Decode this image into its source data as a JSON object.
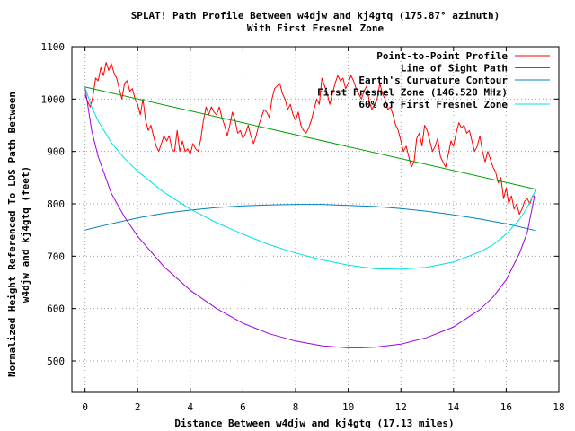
{
  "chart_data": {
    "type": "line",
    "title": "SPLAT! Path Profile Between w4djw and kj4gtq (175.87° azimuth)",
    "subtitle": "With First Fresnel Zone",
    "xlabel": "Distance Between w4djw and kj4gtq (17.13 miles)",
    "ylabel_line1": "Normalized Height Referenced To LOS Path Between",
    "ylabel_line2": "w4djw and kj4gtq (feet)",
    "xlim": [
      -0.5,
      18
    ],
    "ylim": [
      440,
      1100
    ],
    "x_ticks": [
      0,
      2,
      4,
      6,
      8,
      10,
      12,
      14,
      16,
      18
    ],
    "y_ticks": [
      500,
      600,
      700,
      800,
      900,
      1000,
      1100
    ],
    "grid": true,
    "legend_position": "top-right",
    "series": [
      {
        "name": "Point-to-Point Profile",
        "color": "#ff0000",
        "x": [
          0.0,
          0.1,
          0.2,
          0.3,
          0.4,
          0.5,
          0.6,
          0.7,
          0.8,
          0.9,
          1.0,
          1.1,
          1.2,
          1.3,
          1.4,
          1.5,
          1.6,
          1.7,
          1.8,
          1.9,
          2.0,
          2.1,
          2.2,
          2.3,
          2.4,
          2.5,
          2.6,
          2.7,
          2.8,
          2.9,
          3.0,
          3.1,
          3.2,
          3.3,
          3.4,
          3.5,
          3.6,
          3.7,
          3.8,
          3.9,
          4.0,
          4.1,
          4.2,
          4.3,
          4.4,
          4.5,
          4.6,
          4.7,
          4.8,
          4.9,
          5.0,
          5.1,
          5.2,
          5.3,
          5.4,
          5.5,
          5.6,
          5.7,
          5.8,
          5.9,
          6.0,
          6.1,
          6.2,
          6.3,
          6.4,
          6.5,
          6.6,
          6.7,
          6.8,
          6.9,
          7.0,
          7.1,
          7.2,
          7.3,
          7.4,
          7.5,
          7.6,
          7.7,
          7.8,
          7.9,
          8.0,
          8.1,
          8.2,
          8.3,
          8.4,
          8.5,
          8.6,
          8.7,
          8.8,
          8.9,
          9.0,
          9.1,
          9.2,
          9.3,
          9.4,
          9.5,
          9.6,
          9.7,
          9.8,
          9.9,
          10.0,
          10.1,
          10.2,
          10.3,
          10.4,
          10.5,
          10.6,
          10.7,
          10.8,
          10.9,
          11.0,
          11.1,
          11.2,
          11.3,
          11.4,
          11.5,
          11.6,
          11.7,
          11.8,
          11.9,
          12.0,
          12.1,
          12.2,
          12.3,
          12.4,
          12.5,
          12.6,
          12.7,
          12.8,
          12.9,
          13.0,
          13.1,
          13.2,
          13.3,
          13.4,
          13.5,
          13.6,
          13.7,
          13.8,
          13.9,
          14.0,
          14.1,
          14.2,
          14.3,
          14.4,
          14.5,
          14.6,
          14.7,
          14.8,
          14.9,
          15.0,
          15.1,
          15.2,
          15.3,
          15.4,
          15.5,
          15.6,
          15.7,
          15.8,
          15.9,
          16.0,
          16.1,
          16.2,
          16.3,
          16.4,
          16.5,
          16.6,
          16.7,
          16.8,
          16.9,
          17.0,
          17.13
        ],
        "y": [
          1008,
          995,
          985,
          1005,
          1040,
          1035,
          1060,
          1045,
          1070,
          1055,
          1068,
          1050,
          1040,
          1020,
          1000,
          1030,
          1035,
          1015,
          1020,
          1000,
          990,
          970,
          1000,
          960,
          940,
          950,
          930,
          910,
          900,
          915,
          930,
          920,
          930,
          905,
          900,
          940,
          900,
          920,
          900,
          905,
          895,
          915,
          905,
          900,
          925,
          960,
          985,
          970,
          985,
          975,
          970,
          985,
          965,
          950,
          930,
          950,
          975,
          960,
          935,
          940,
          925,
          935,
          950,
          930,
          915,
          930,
          950,
          965,
          980,
          975,
          965,
          1000,
          1020,
          1025,
          1030,
          1010,
          1000,
          980,
          990,
          970,
          960,
          975,
          950,
          940,
          935,
          945,
          960,
          980,
          1000,
          990,
          1040,
          1025,
          1010,
          990,
          1010,
          1030,
          1045,
          1035,
          1040,
          1020,
          1030,
          1045,
          1035,
          1020,
          1010,
          1000,
          1015,
          1025,
          995,
          980,
          990,
          1000,
          1030,
          1010,
          1000,
          980,
          985,
          970,
          950,
          940,
          920,
          900,
          910,
          890,
          870,
          880,
          925,
          935,
          910,
          950,
          940,
          920,
          900,
          910,
          925,
          890,
          880,
          870,
          895,
          920,
          910,
          935,
          955,
          945,
          950,
          935,
          940,
          920,
          900,
          910,
          930,
          900,
          880,
          900,
          885,
          870,
          860,
          840,
          850,
          810,
          830,
          800,
          815,
          790,
          800,
          780,
          790,
          805,
          810,
          800,
          815,
          812
        ]
      },
      {
        "name": "Line of Sight Path",
        "color": "#00a000",
        "x": [
          0,
          17.13
        ],
        "y": [
          1023,
          828
        ]
      },
      {
        "name": "Earth's Curvature Contour",
        "color": "#0080c0",
        "x": [
          0,
          1,
          2,
          3,
          4,
          5,
          6,
          7,
          8,
          9,
          10,
          11,
          12,
          13,
          14,
          15,
          16,
          17.13
        ],
        "y": [
          750,
          762,
          773,
          782,
          788,
          793,
          796,
          798,
          799,
          799,
          797,
          795,
          791,
          786,
          779,
          771,
          762,
          749
        ]
      },
      {
        "name": "First Fresnel Zone (146.520 MHz)",
        "color": "#a000e0",
        "x": [
          0,
          0.25,
          0.5,
          1,
          1.5,
          2,
          3,
          4,
          5,
          6,
          7,
          8,
          9,
          10,
          10.5,
          11,
          12,
          13,
          14,
          15,
          15.5,
          16,
          16.5,
          16.8,
          17.13
        ],
        "y": [
          1023,
          940,
          890,
          820,
          775,
          738,
          680,
          635,
          600,
          572,
          552,
          538,
          529,
          525,
          525,
          526,
          532,
          545,
          565,
          598,
          622,
          655,
          705,
          745,
          828
        ]
      },
      {
        "name": "60% of First Fresnel Zone",
        "color": "#00e0e0",
        "x": [
          0,
          0.25,
          0.5,
          1,
          1.5,
          2,
          3,
          4,
          5,
          6,
          7,
          8,
          9,
          10,
          11,
          12,
          13,
          14,
          15,
          15.5,
          16,
          16.5,
          16.8,
          17.13
        ],
        "y": [
          1023,
          985,
          958,
          917,
          887,
          862,
          822,
          790,
          764,
          742,
          722,
          706,
          693,
          683,
          676,
          675,
          679,
          689,
          708,
          722,
          742,
          770,
          793,
          828
        ]
      }
    ]
  }
}
